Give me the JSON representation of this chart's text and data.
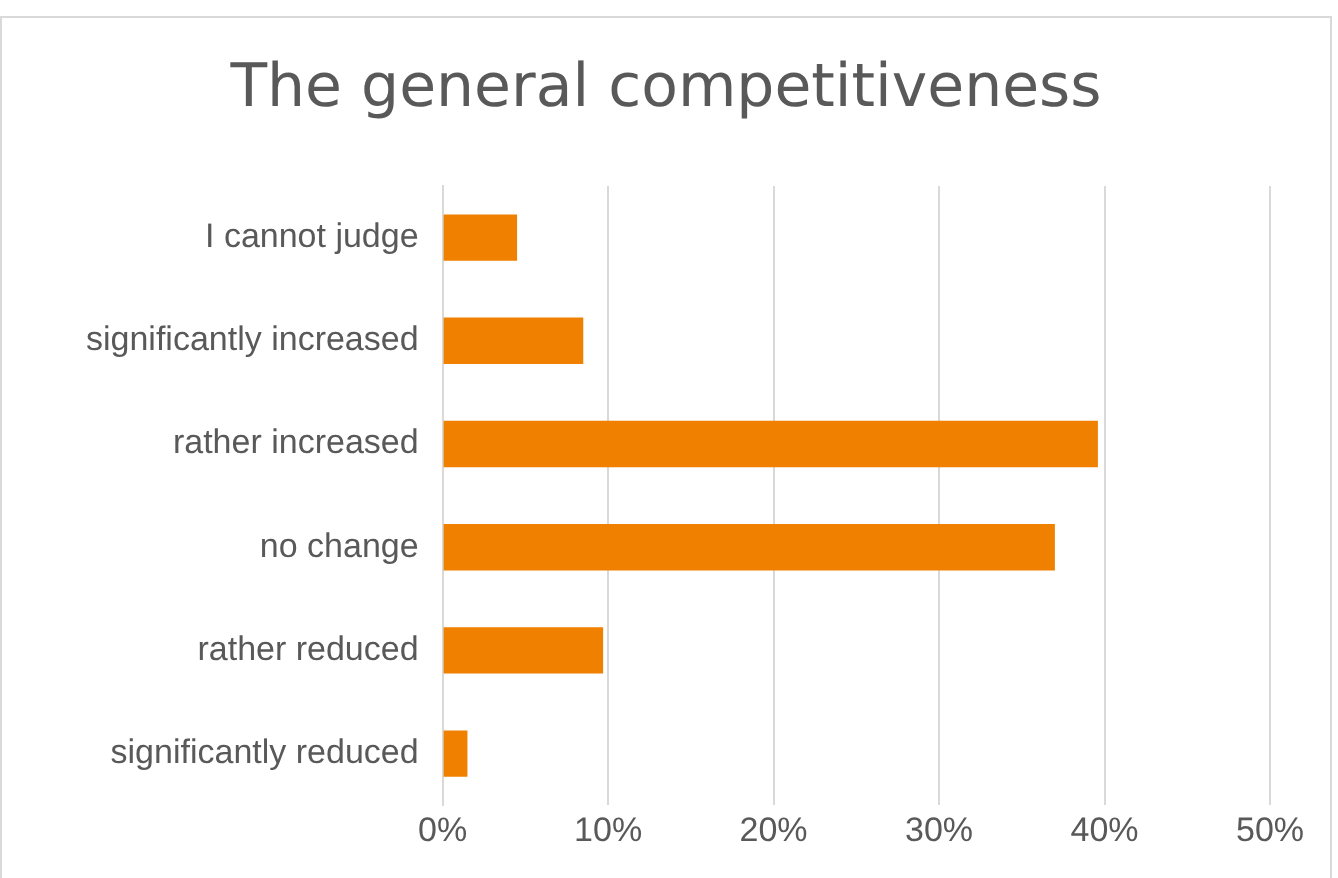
{
  "chart_data": {
    "type": "bar",
    "orientation": "horizontal",
    "title": "The general competitiveness",
    "categories": [
      "I cannot judge",
      "significantly increased",
      "rather increased",
      "no change",
      "rather reduced",
      "significantly reduced"
    ],
    "values": [
      4.5,
      8.5,
      39.6,
      37.0,
      9.7,
      1.5
    ],
    "color": "#f08000",
    "xlim": [
      0,
      50
    ],
    "xticks": [
      {
        "value": 0,
        "label": "0%"
      },
      {
        "value": 10,
        "label": "10%"
      },
      {
        "value": 20,
        "label": "20%"
      },
      {
        "value": 30,
        "label": "30%"
      },
      {
        "value": 40,
        "label": "40%"
      },
      {
        "value": 50,
        "label": "50%"
      }
    ],
    "grid": "x",
    "legend": false
  }
}
